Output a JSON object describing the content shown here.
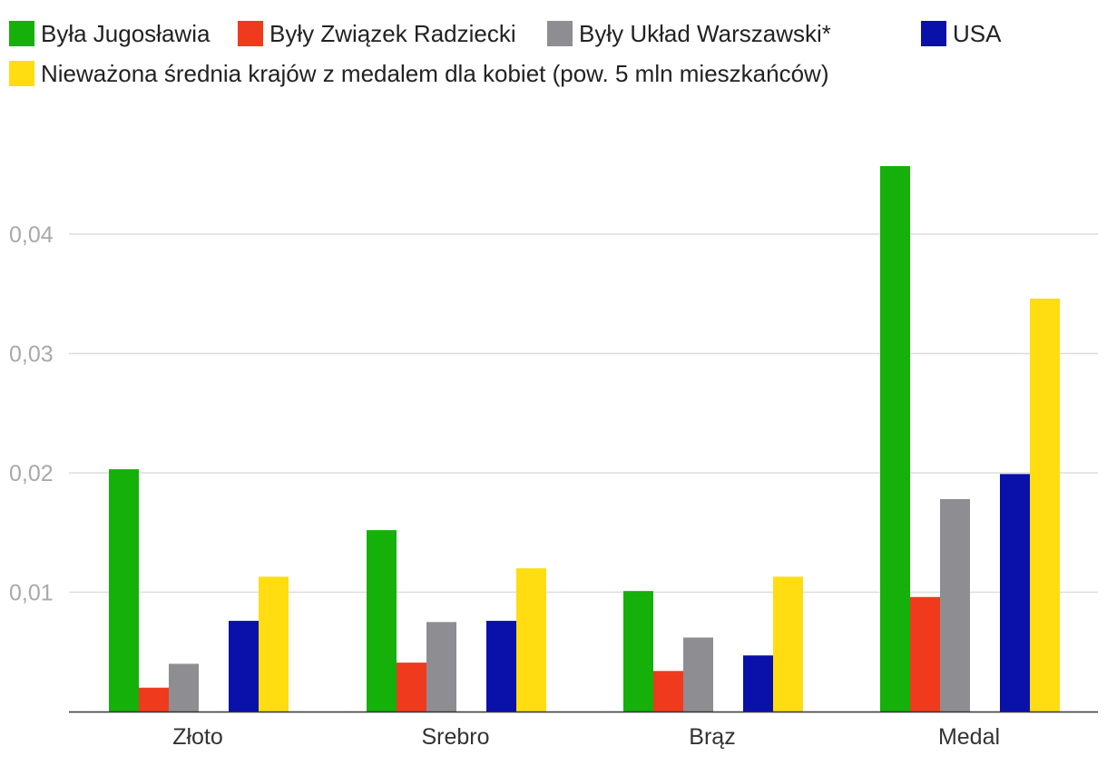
{
  "chart_data": {
    "type": "bar",
    "title": "",
    "xlabel": "",
    "ylabel": "",
    "categories": [
      "Złoto",
      "Srebro",
      "Brąz",
      "Medal"
    ],
    "yticks": [
      "0,01",
      "0,02",
      "0,03",
      "0,04"
    ],
    "ylim": [
      0,
      0.048
    ],
    "grid": true,
    "legend_position": "top",
    "series": [
      {
        "name": "Była Jugosławia",
        "color": "#15b00a",
        "values": [
          0.0203,
          0.0152,
          0.0101,
          0.0457
        ]
      },
      {
        "name": "Były Związek Radziecki",
        "color": "#f03a1d",
        "values": [
          0.002,
          0.0041,
          0.0034,
          0.0096
        ]
      },
      {
        "name": "Były Układ Warszawski*",
        "color": "#8e8d92",
        "values": [
          0.004,
          0.0075,
          0.0062,
          0.0178
        ]
      },
      {
        "name": "USA",
        "color": "#0a10aa",
        "values": [
          0.0076,
          0.0076,
          0.0047,
          0.0199
        ]
      },
      {
        "name": "Nieważona średnia krajów z medalem dla kobiet (pow. 5 mln mieszkańców)",
        "color": "#ffdd11",
        "values": [
          0.0113,
          0.012,
          0.0113,
          0.0346
        ]
      }
    ]
  }
}
